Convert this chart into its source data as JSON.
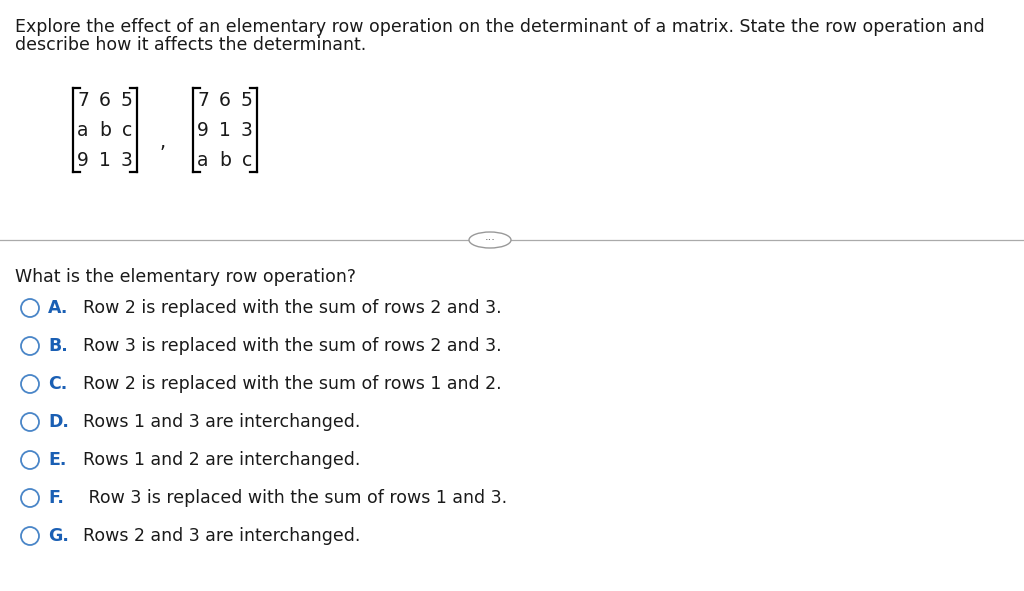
{
  "title_line1": "Explore the effect of an elementary row operation on the determinant of a matrix. State the row operation and",
  "title_line2": "describe how it affects the determinant.",
  "matrix1": [
    [
      "7",
      "6",
      "5"
    ],
    [
      "a",
      "b",
      "c"
    ],
    [
      "9",
      "1",
      "3"
    ]
  ],
  "matrix2": [
    [
      "7",
      "6",
      "5"
    ],
    [
      "9",
      "1",
      "3"
    ],
    [
      "a",
      "b",
      "c"
    ]
  ],
  "question": "What is the elementary row operation?",
  "options": [
    {
      "label": "A.",
      "text": "  Row 2 is replaced with the sum of rows 2 and 3."
    },
    {
      "label": "B.",
      "text": "  Row 3 is replaced with the sum of rows 2 and 3."
    },
    {
      "label": "C.",
      "text": "  Row 2 is replaced with the sum of rows 1 and 2."
    },
    {
      "label": "D.",
      "text": "  Rows 1 and 3 are interchanged."
    },
    {
      "label": "E.",
      "text": "  Rows 1 and 2 are interchanged."
    },
    {
      "label": "F.",
      "text": "   Row 3 is replaced with the sum of rows 1 and 3."
    },
    {
      "label": "G.",
      "text": "  Rows 2 and 3 are interchanged."
    }
  ],
  "bg_color": "#ffffff",
  "text_color": "#1a1a1a",
  "option_label_color": "#1a5fb4",
  "circle_edge_color": "#4a86c8",
  "separator_color": "#aaaaaa",
  "title_fontsize": 12.5,
  "body_fontsize": 12.5,
  "matrix_fontsize": 13.5,
  "fig_width": 10.24,
  "fig_height": 5.91,
  "dpi": 100
}
